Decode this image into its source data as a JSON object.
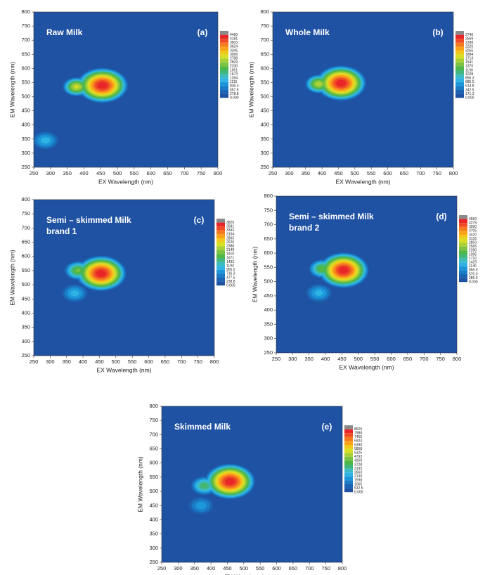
{
  "chart_data": [
    {
      "type": "contour",
      "title": [
        "Raw Milk"
      ],
      "panel": "(a)",
      "x_label": "EX Wavelength (nm)",
      "y_label": "EM Wavelength (nm)",
      "xlim": [
        250,
        800
      ],
      "xticks": [
        250,
        300,
        350,
        400,
        450,
        500,
        550,
        600,
        650,
        700,
        750,
        800
      ],
      "ylim": [
        250,
        800
      ],
      "yticks": [
        250,
        300,
        350,
        400,
        450,
        500,
        550,
        600,
        650,
        700,
        750,
        800
      ],
      "levels": [
        4460,
        4181,
        3903,
        3624,
        3345,
        3066,
        2788,
        2509,
        2230,
        1951,
        1673,
        1394,
        1115,
        836.3,
        557.5,
        278.8,
        {
          "value": 0,
          "label": "0.000"
        }
      ],
      "colors": [
        "#8a8a8a",
        "#e8262a",
        "#ee4a25",
        "#f47b20",
        "#f9a31b",
        "#f3c81c",
        "#d7df24",
        "#a9d136",
        "#7cc242",
        "#4db848",
        "#42b67c",
        "#3cbcc0",
        "#2fb3e5",
        "#1d97d9",
        "#1a7bc6",
        "#1c63b2",
        "#1f52a3"
      ],
      "peaks": [
        {
          "x": 455,
          "y": 540,
          "z": 4460
        },
        {
          "x": 378,
          "y": 535,
          "z": 2900
        },
        {
          "x": 285,
          "y": 345,
          "z": 1300
        }
      ]
    },
    {
      "type": "contour",
      "title": [
        "Whole Milk"
      ],
      "panel": "(b)",
      "x_label": "EX Wavelength (nm)",
      "y_label": "EM Wavelength (nm)",
      "xlim": [
        250,
        800
      ],
      "xticks": [
        250,
        300,
        350,
        400,
        450,
        500,
        550,
        600,
        650,
        700,
        750,
        800
      ],
      "ylim": [
        250,
        800
      ],
      "yticks": [
        250,
        300,
        350,
        400,
        450,
        500,
        550,
        600,
        650,
        700,
        750,
        800
      ],
      "levels": [
        2740,
        2569,
        2398,
        2226,
        2055,
        1884,
        1713,
        1541,
        1370,
        1199,
        1028,
        856.3,
        {
          "value": 685,
          "label": "685.0"
        },
        513.8,
        342.5,
        171.3,
        {
          "value": 0,
          "label": "0.000"
        }
      ],
      "colors": [
        "#8a8a8a",
        "#e8262a",
        "#ee4a25",
        "#f47b20",
        "#f9a31b",
        "#f3c81c",
        "#d7df24",
        "#a9d136",
        "#7cc242",
        "#4db848",
        "#42b67c",
        "#3cbcc0",
        "#2fb3e5",
        "#1d97d9",
        "#1a7bc6",
        "#1c63b2",
        "#1f52a3"
      ],
      "peaks": [
        {
          "x": 458,
          "y": 548,
          "z": 2740
        },
        {
          "x": 390,
          "y": 545,
          "z": 1700
        }
      ]
    },
    {
      "type": "contour",
      "title": [
        "Semi – skimmed Milk",
        "brand 1"
      ],
      "panel": "(c)",
      "x_label": "EX Wavelength (nm)",
      "y_label": "EM Wavelength (nm)",
      "xlim": [
        250,
        800
      ],
      "xticks": [
        250,
        300,
        350,
        400,
        450,
        500,
        550,
        600,
        650,
        700,
        750,
        800
      ],
      "ylim": [
        250,
        800
      ],
      "yticks": [
        250,
        300,
        350,
        400,
        450,
        500,
        550,
        600,
        650,
        700,
        750,
        800
      ],
      "levels": [
        3820,
        3581,
        3343,
        3104,
        2865,
        2626,
        2388,
        2149,
        1910,
        1671,
        1433,
        1194,
        {
          "value": 955,
          "label": "955.0"
        },
        716.3,
        477.5,
        238.8,
        {
          "value": 0,
          "label": "0.000"
        }
      ],
      "colors": [
        "#8a8a8a",
        "#e8262a",
        "#ee4a25",
        "#f47b20",
        "#f9a31b",
        "#f3c81c",
        "#d7df24",
        "#a9d136",
        "#7cc242",
        "#4db848",
        "#42b67c",
        "#3cbcc0",
        "#2fb3e5",
        "#1d97d9",
        "#1a7bc6",
        "#1c63b2",
        "#1f52a3"
      ],
      "peaks": [
        {
          "x": 455,
          "y": 540,
          "z": 3820
        },
        {
          "x": 385,
          "y": 550,
          "z": 2000
        },
        {
          "x": 375,
          "y": 470,
          "z": 1100
        }
      ]
    },
    {
      "type": "contour",
      "title": [
        "Semi – skimmed Milk",
        "brand 2"
      ],
      "panel": "(d)",
      "x_label": "EX Wavelength (nm)",
      "y_label": "EM Wavelength (nm)",
      "xlim": [
        250,
        800
      ],
      "xticks": [
        250,
        300,
        350,
        400,
        450,
        500,
        550,
        600,
        650,
        700,
        750,
        800
      ],
      "ylim": [
        250,
        800
      ],
      "yticks": [
        250,
        300,
        350,
        400,
        450,
        500,
        550,
        600,
        650,
        700,
        750,
        800
      ],
      "levels": [
        4560,
        4275,
        3990,
        3705,
        3420,
        3135,
        2850,
        2565,
        2280,
        1995,
        1710,
        1425,
        1140,
        {
          "value": 855,
          "label": "855.0"
        },
        {
          "value": 570,
          "label": "570.0"
        },
        {
          "value": 285,
          "label": "285.0"
        },
        {
          "value": 0,
          "label": "0.000"
        }
      ],
      "colors": [
        "#8a8a8a",
        "#e8262a",
        "#ee4a25",
        "#f47b20",
        "#f9a31b",
        "#f3c81c",
        "#d7df24",
        "#a9d136",
        "#7cc242",
        "#4db848",
        "#42b67c",
        "#3cbcc0",
        "#2fb3e5",
        "#1d97d9",
        "#1a7bc6",
        "#1c63b2",
        "#1f52a3"
      ],
      "peaks": [
        {
          "x": 455,
          "y": 540,
          "z": 4560
        },
        {
          "x": 390,
          "y": 545,
          "z": 2300
        },
        {
          "x": 380,
          "y": 460,
          "z": 1300
        }
      ]
    },
    {
      "type": "contour",
      "title": [
        "Skimmed Milk"
      ],
      "panel": "(e)",
      "x_label": "EX Wavelength (nm)",
      "y_label": "EM Wavelength (nm)",
      "xlim": [
        250,
        800
      ],
      "xticks": [
        250,
        300,
        350,
        400,
        450,
        500,
        550,
        600,
        650,
        700,
        750,
        800
      ],
      "ylim": [
        250,
        800
      ],
      "yticks": [
        250,
        300,
        350,
        400,
        450,
        500,
        550,
        600,
        650,
        700,
        750,
        800
      ],
      "levels": [
        8520,
        7988,
        7455,
        6923,
        6390,
        5858,
        5325,
        4793,
        4260,
        3728,
        3195,
        2663,
        2130,
        1598,
        1065,
        532.5,
        {
          "value": 0,
          "label": "0.000"
        }
      ],
      "colors": [
        "#8a8a8a",
        "#e8262a",
        "#ee4a25",
        "#f47b20",
        "#f9a31b",
        "#f3c81c",
        "#d7df24",
        "#a9d136",
        "#7cc242",
        "#4db848",
        "#42b67c",
        "#3cbcc0",
        "#2fb3e5",
        "#1d97d9",
        "#1a7bc6",
        "#1c63b2",
        "#1f52a3"
      ],
      "peaks": [
        {
          "x": 458,
          "y": 535,
          "z": 8520
        },
        {
          "x": 380,
          "y": 520,
          "z": 3800
        },
        {
          "x": 370,
          "y": 450,
          "z": 2000
        }
      ]
    }
  ]
}
